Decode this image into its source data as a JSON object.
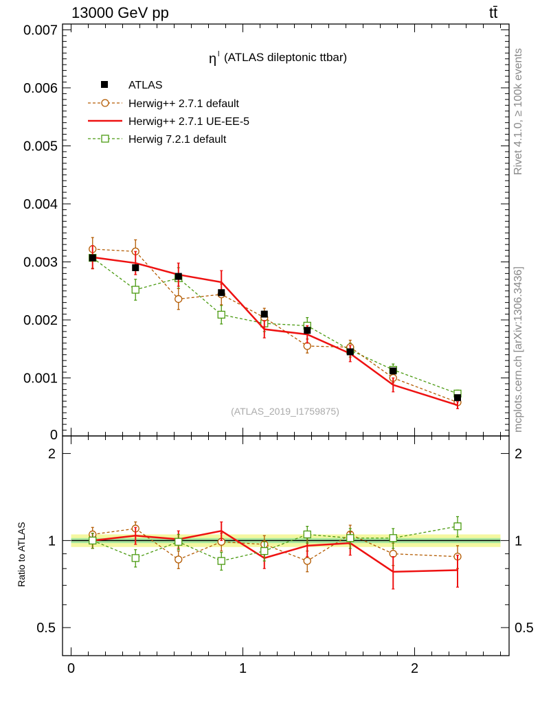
{
  "header": {
    "energy_label": "13000 GeV pp",
    "process_label": "tt̄"
  },
  "side_labels": {
    "rivet": "Rivet 4.1.0, ≥ 100k events",
    "mcplots": "mcplots.cern.ch [arXiv:1306.3436]"
  },
  "chart_data": [
    {
      "type": "line",
      "title_symbol": "η",
      "title_superscript": "l",
      "title": "(ATLAS dileptonic ttbar)",
      "watermark": "(ATLAS_2019_I1759875)",
      "xlim": [
        -0.05,
        2.55
      ],
      "ylim": [
        0,
        0.0071
      ],
      "yticks": [
        "0.001",
        "0.002",
        "0.003",
        "0.004",
        "0.005",
        "0.006",
        "0.007"
      ],
      "y_zero_label": "0",
      "x": [
        0.125,
        0.375,
        0.625,
        0.875,
        1.125,
        1.375,
        1.625,
        1.875,
        2.25
      ],
      "series": [
        {
          "name": "ATLAS",
          "color": "#000000",
          "marker": "square-filled",
          "values": [
            0.00307,
            0.0029,
            0.00275,
            0.00247,
            0.0021,
            0.00182,
            0.00145,
            0.00112,
            0.00066
          ],
          "errors": [
            6e-05,
            6e-05,
            5e-05,
            5e-05,
            4e-05,
            4e-05,
            4e-05,
            4e-05,
            3e-05
          ]
        },
        {
          "name": "Herwig++ 2.7.1 default",
          "color": "#b35a00",
          "marker": "circle-open",
          "dashed": true,
          "values": [
            0.00322,
            0.00318,
            0.00236,
            0.00244,
            0.00204,
            0.00155,
            0.00153,
            0.001,
            0.00058
          ],
          "errors": [
            0.0002,
            0.0002,
            0.00018,
            0.00018,
            0.00016,
            0.00012,
            0.00012,
            8e-05,
            5e-05
          ]
        },
        {
          "name": "Herwig++ 2.7.1 UE-EE-5",
          "color": "#ee1111",
          "marker": "none",
          "values": [
            0.00308,
            0.00298,
            0.00278,
            0.00265,
            0.00184,
            0.00175,
            0.00142,
            0.00088,
            0.00053
          ],
          "errors": [
            0.0002,
            0.0002,
            0.0002,
            0.0002,
            0.00015,
            0.00015,
            0.00014,
            0.00012,
            6e-05
          ]
        },
        {
          "name": "Herwig 7.2.1 default",
          "color": "#4a9a10",
          "marker": "square-open",
          "dashed": true,
          "values": [
            0.00307,
            0.00252,
            0.00272,
            0.00209,
            0.00194,
            0.0019,
            0.00148,
            0.00114,
            0.00073
          ],
          "errors": [
            0.00018,
            0.00018,
            0.00018,
            0.00016,
            0.00014,
            0.00014,
            0.00012,
            0.0001,
            6e-05
          ]
        }
      ]
    },
    {
      "type": "line",
      "ylabel": "Ratio to ATLAS",
      "xlabel": "",
      "xlim": [
        -0.05,
        2.55
      ],
      "ylim": [
        0.4,
        2.3
      ],
      "yticks": [
        "0.5",
        "1",
        "2"
      ],
      "xticks": [
        "0",
        "1",
        "2"
      ],
      "x": [
        0.125,
        0.375,
        0.625,
        0.875,
        1.125,
        1.375,
        1.625,
        1.875,
        2.25
      ],
      "band_inner": 0.02,
      "band_outer": 0.05,
      "series": [
        {
          "name": "Herwig++ 2.7.1 default",
          "color": "#b35a00",
          "marker": "circle-open",
          "dashed": true,
          "values": [
            1.05,
            1.1,
            0.86,
            0.99,
            0.97,
            0.85,
            1.05,
            0.9,
            0.88
          ],
          "errors": [
            0.06,
            0.06,
            0.06,
            0.07,
            0.07,
            0.07,
            0.08,
            0.08,
            0.08
          ]
        },
        {
          "name": "Herwig++ 2.7.1 UE-EE-5",
          "color": "#ee1111",
          "marker": "none",
          "values": [
            1.0,
            1.04,
            1.01,
            1.08,
            0.87,
            0.96,
            0.98,
            0.78,
            0.79
          ],
          "errors": [
            0.06,
            0.07,
            0.07,
            0.08,
            0.07,
            0.08,
            0.09,
            0.1,
            0.1
          ]
        },
        {
          "name": "Herwig 7.2.1 default",
          "color": "#4a9a10",
          "marker": "square-open",
          "dashed": true,
          "values": [
            1.0,
            0.87,
            0.99,
            0.85,
            0.92,
            1.05,
            1.02,
            1.02,
            1.12
          ],
          "errors": [
            0.06,
            0.06,
            0.06,
            0.06,
            0.07,
            0.07,
            0.08,
            0.08,
            0.09
          ]
        }
      ]
    }
  ]
}
